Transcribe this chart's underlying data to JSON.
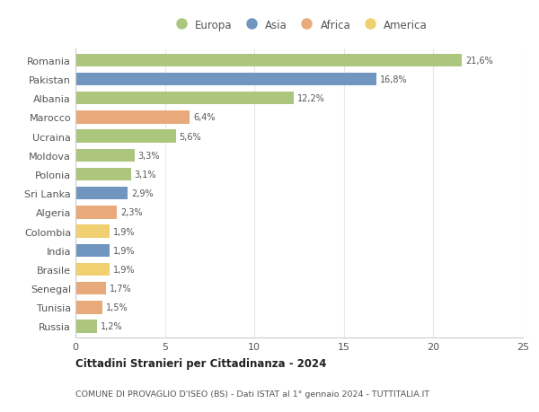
{
  "countries": [
    "Romania",
    "Pakistan",
    "Albania",
    "Marocco",
    "Ucraina",
    "Moldova",
    "Polonia",
    "Sri Lanka",
    "Algeria",
    "Colombia",
    "India",
    "Brasile",
    "Senegal",
    "Tunisia",
    "Russia"
  ],
  "values": [
    21.6,
    16.8,
    12.2,
    6.4,
    5.6,
    3.3,
    3.1,
    2.9,
    2.3,
    1.9,
    1.9,
    1.9,
    1.7,
    1.5,
    1.2
  ],
  "labels": [
    "21,6%",
    "16,8%",
    "12,2%",
    "6,4%",
    "5,6%",
    "3,3%",
    "3,1%",
    "2,9%",
    "2,3%",
    "1,9%",
    "1,9%",
    "1,9%",
    "1,7%",
    "1,5%",
    "1,2%"
  ],
  "continents": [
    "Europa",
    "Asia",
    "Europa",
    "Africa",
    "Europa",
    "Europa",
    "Europa",
    "Asia",
    "Africa",
    "America",
    "Asia",
    "America",
    "Africa",
    "Africa",
    "Europa"
  ],
  "colors": {
    "Europa": "#adc67e",
    "Asia": "#7095bf",
    "Africa": "#e8aa7a",
    "America": "#f0d070"
  },
  "legend_order": [
    "Europa",
    "Asia",
    "Africa",
    "America"
  ],
  "xlim": [
    0,
    25
  ],
  "xticks": [
    0,
    5,
    10,
    15,
    20,
    25
  ],
  "title1": "Cittadini Stranieri per Cittadinanza - 2024",
  "title2": "COMUNE DI PROVAGLIO D'ISEO (BS) - Dati ISTAT al 1° gennaio 2024 - TUTTITALIA.IT",
  "bg_color": "#ffffff",
  "grid_color": "#e8e8e8",
  "bar_height": 0.68
}
